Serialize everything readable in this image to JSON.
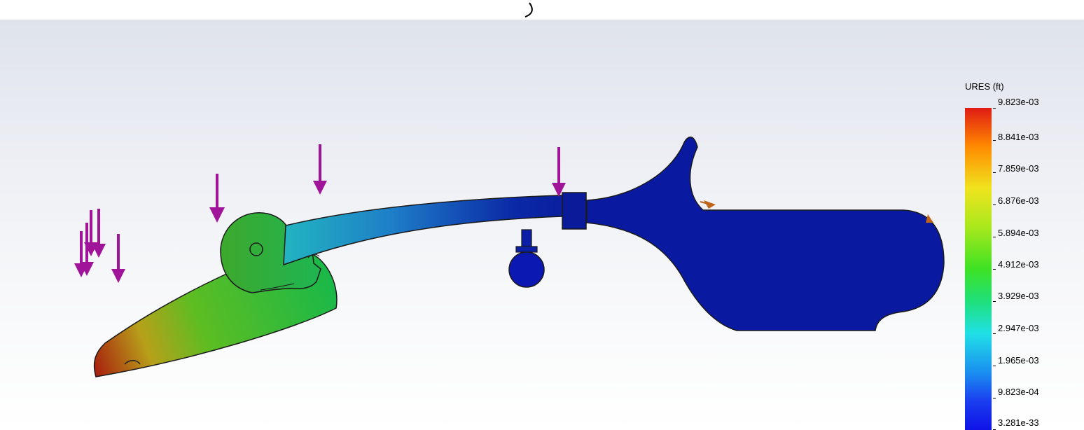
{
  "legend": {
    "title": "URES (ft)",
    "labels": [
      "9.823e-03",
      "8.841e-03",
      "7.859e-03",
      "6.876e-03",
      "5.894e-03",
      "4.912e-03",
      "3.929e-03",
      "2.947e-03",
      "1.965e-03",
      "9.823e-04",
      "3.281e-33"
    ]
  },
  "colors": {
    "load_arrow": "#a0149a",
    "fixture_arrow": "#c06418",
    "outline": "#000000"
  }
}
